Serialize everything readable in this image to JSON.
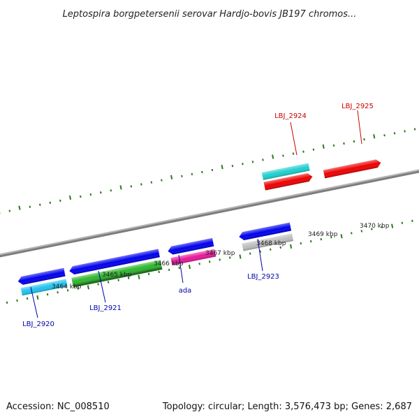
{
  "title": "Leptospira borgpetersenii serovar Hardjo-bovis JB197 chromos...",
  "footer": {
    "accession": "Accession: NC_008510",
    "summary": "Topology: circular; Length: 3,576,473 bp; Genes: 2,687"
  },
  "colors": {
    "axis": "#8a8a8a",
    "tick": "#2a7a1a",
    "label_forward": "#cc0000",
    "label_reverse": "#0000aa"
  },
  "kbp_labels": [
    {
      "text": "3464 kbp",
      "kbp": 3464
    },
    {
      "text": "3465 kbp",
      "kbp": 3465
    },
    {
      "text": "3466 kbp",
      "kbp": 3466
    },
    {
      "text": "3467 kbp",
      "kbp": 3467
    },
    {
      "text": "3468 kbp",
      "kbp": 3468
    },
    {
      "text": "3469 kbp",
      "kbp": 3469
    },
    {
      "text": "3470 kbp",
      "kbp": 3470
    }
  ],
  "gene_labels": [
    {
      "text": "LBJ_2920",
      "strand": "reverse"
    },
    {
      "text": "LBJ_2921",
      "strand": "reverse"
    },
    {
      "text": "ada",
      "strand": "reverse"
    },
    {
      "text": "LBJ_2923",
      "strand": "reverse"
    },
    {
      "text": "LBJ_2924",
      "strand": "forward"
    },
    {
      "text": "LBJ_2925",
      "strand": "forward"
    }
  ]
}
